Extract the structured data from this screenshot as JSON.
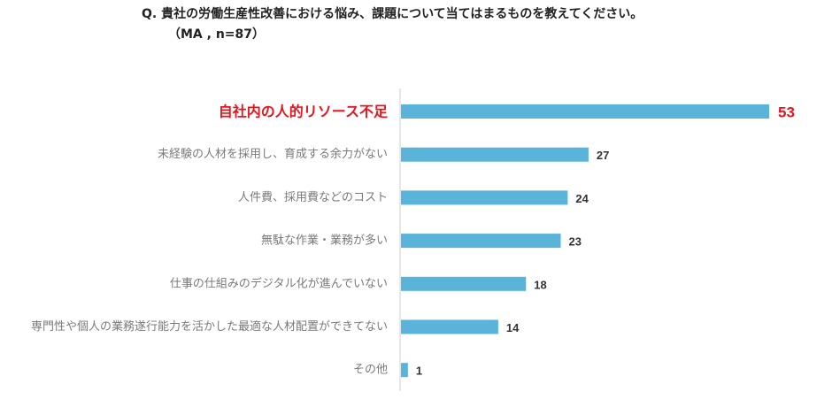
{
  "question": "Q. 貴社の労働生産性改善における悩み、課題について当てはまるものを教えてください。",
  "note": "（MA , n=87）",
  "colors": {
    "bar": "#5ab4d9",
    "highlight": "#e8141c",
    "axis": "#cfcfcf"
  },
  "chart_data": {
    "type": "bar",
    "orientation": "horizontal",
    "categories": [
      "自社内の人的リソース不足",
      "未経験の人材を採用し、育成する余力がない",
      "人件費、採用費などのコスト",
      "無駄な作業・業務が多い",
      "仕事の仕組みのデジタル化が進んでいない",
      "専門性や個人の業務遂行能力を活かした最適な人材配置ができてない",
      "その他"
    ],
    "values": [
      53,
      27,
      24,
      23,
      18,
      14,
      1
    ],
    "highlight_index": 0,
    "xlim": [
      0,
      53
    ],
    "grid": false
  }
}
